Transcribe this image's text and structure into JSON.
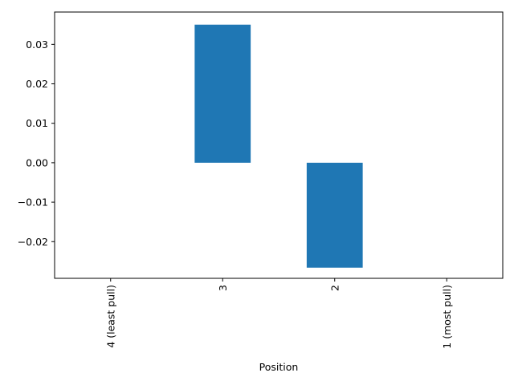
{
  "chart_data": {
    "type": "bar",
    "categories": [
      "4 (least pull)",
      "3",
      "2",
      "1 (most pull)"
    ],
    "values": [
      0,
      0.035,
      -0.0266,
      0
    ],
    "xlabel": "Position",
    "ylabel": "",
    "ylim": [
      -0.0293,
      0.0382
    ],
    "yticks": [
      -0.02,
      -0.01,
      0.0,
      0.01,
      0.02,
      0.03
    ],
    "ytick_labels": [
      "−0.02",
      "−0.01",
      "0.00",
      "0.01",
      "0.02",
      "0.03"
    ],
    "bar_color": "#1f77b4",
    "grid": false,
    "x_tick_rotation": 90
  }
}
